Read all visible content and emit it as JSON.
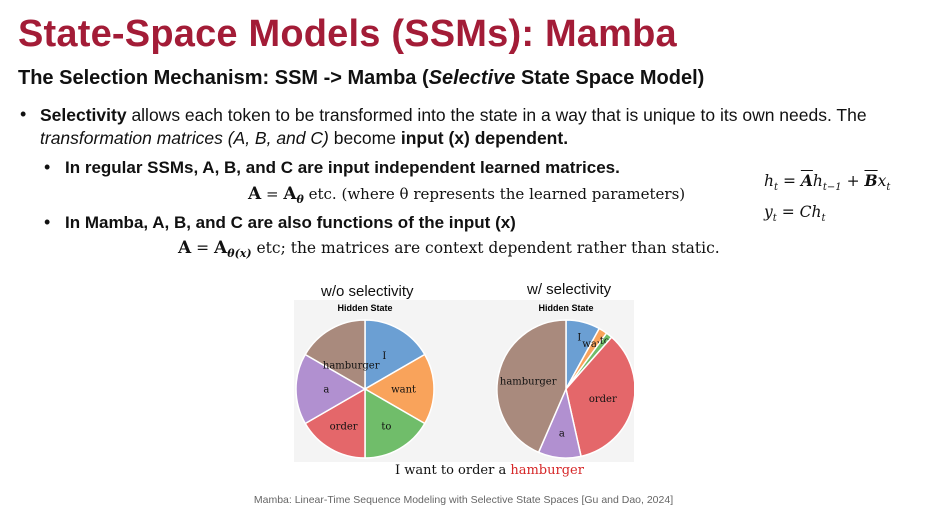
{
  "title": "State-Space Models (SSMs): Mamba",
  "subtitle": {
    "pre": "The Selection Mechanism: SSM -> Mamba (",
    "italic": "Selective",
    "post": " State Space Model)"
  },
  "bullet1": {
    "bold1": "Selectivity",
    "text1": " allows each token to be transformed into the state in a way that is unique to its own needs. The ",
    "italic": "transformation matrices (A, B, and C)",
    "text2": " become ",
    "bold2": "input (x) dependent."
  },
  "bullet2": "In regular SSMs, A, B, and C are input independent learned matrices.",
  "eq1": {
    "lhs": "A",
    "eq": " = ",
    "rhs": "A",
    "sub": "θ",
    "note": " etc. (where θ represents the learned parameters)"
  },
  "bullet3": "In Mamba, A, B, and C are also functions of the input (x)",
  "eq2": {
    "lhs": "A",
    "eq": " = ",
    "rhs": "A",
    "sub": "θ(x)",
    "note": " etc; the matrices are context dependent rather than static."
  },
  "math": {
    "h": "h",
    "t": "t",
    "A": "A",
    "t1": "t−1",
    "B": "B",
    "x": "x",
    "y": "y",
    "C": "C"
  },
  "chart_data": [
    {
      "type": "pie",
      "title": "w/o selectivity",
      "subtitle": "Hidden State",
      "categories": [
        "I",
        "want",
        "to",
        "order",
        "a",
        "hamburger"
      ],
      "values": [
        16.67,
        16.67,
        16.67,
        16.67,
        16.67,
        16.67
      ],
      "colors": [
        "#6b9fd3",
        "#f9a35b",
        "#70bd6a",
        "#e4676a",
        "#b190d0",
        "#a98a7d"
      ]
    },
    {
      "type": "pie",
      "title": "w/ selectivity",
      "subtitle": "Hidden State",
      "categories": [
        "I",
        "want",
        "to",
        "order",
        "a",
        "hamburger"
      ],
      "values": [
        8,
        2,
        1.5,
        35,
        10,
        43.5
      ],
      "colors": [
        "#6b9fd3",
        "#f9a35b",
        "#70bd6a",
        "#e4676a",
        "#b190d0",
        "#a98a7d"
      ]
    }
  ],
  "caption": {
    "plain": "I want to order a ",
    "highlight": "hamburger"
  },
  "citation": "Mamba: Linear-Time Sequence Modeling with Selective State Spaces [Gu and Dao, 2024]"
}
